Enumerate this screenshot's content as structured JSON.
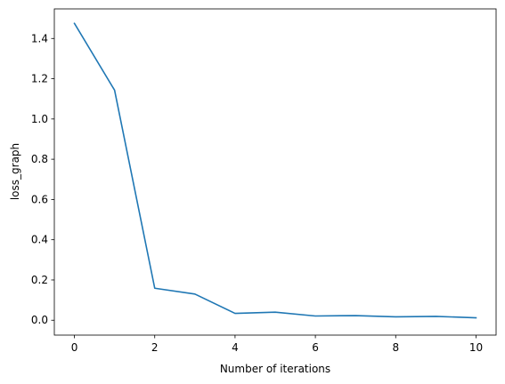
{
  "chart_data": {
    "type": "line",
    "title": "",
    "xlabel": "Number of iterations",
    "ylabel": "loss_graph",
    "xlim": [
      -0.5,
      10.5
    ],
    "ylim": [
      -0.074,
      1.547
    ],
    "xticks": [
      0,
      2,
      4,
      6,
      8,
      10
    ],
    "yticks": [
      0.0,
      0.2,
      0.4,
      0.6,
      0.8,
      1.0,
      1.2,
      1.4
    ],
    "grid": false,
    "legend": "none",
    "series": [
      {
        "color": "#1f77b4",
        "x": [
          0,
          1,
          2,
          3,
          4,
          5,
          6,
          7,
          8,
          9,
          10
        ],
        "y": [
          1.475,
          1.143,
          0.159,
          0.13,
          0.034,
          0.04,
          0.021,
          0.023,
          0.017,
          0.019,
          0.012
        ]
      }
    ]
  }
}
